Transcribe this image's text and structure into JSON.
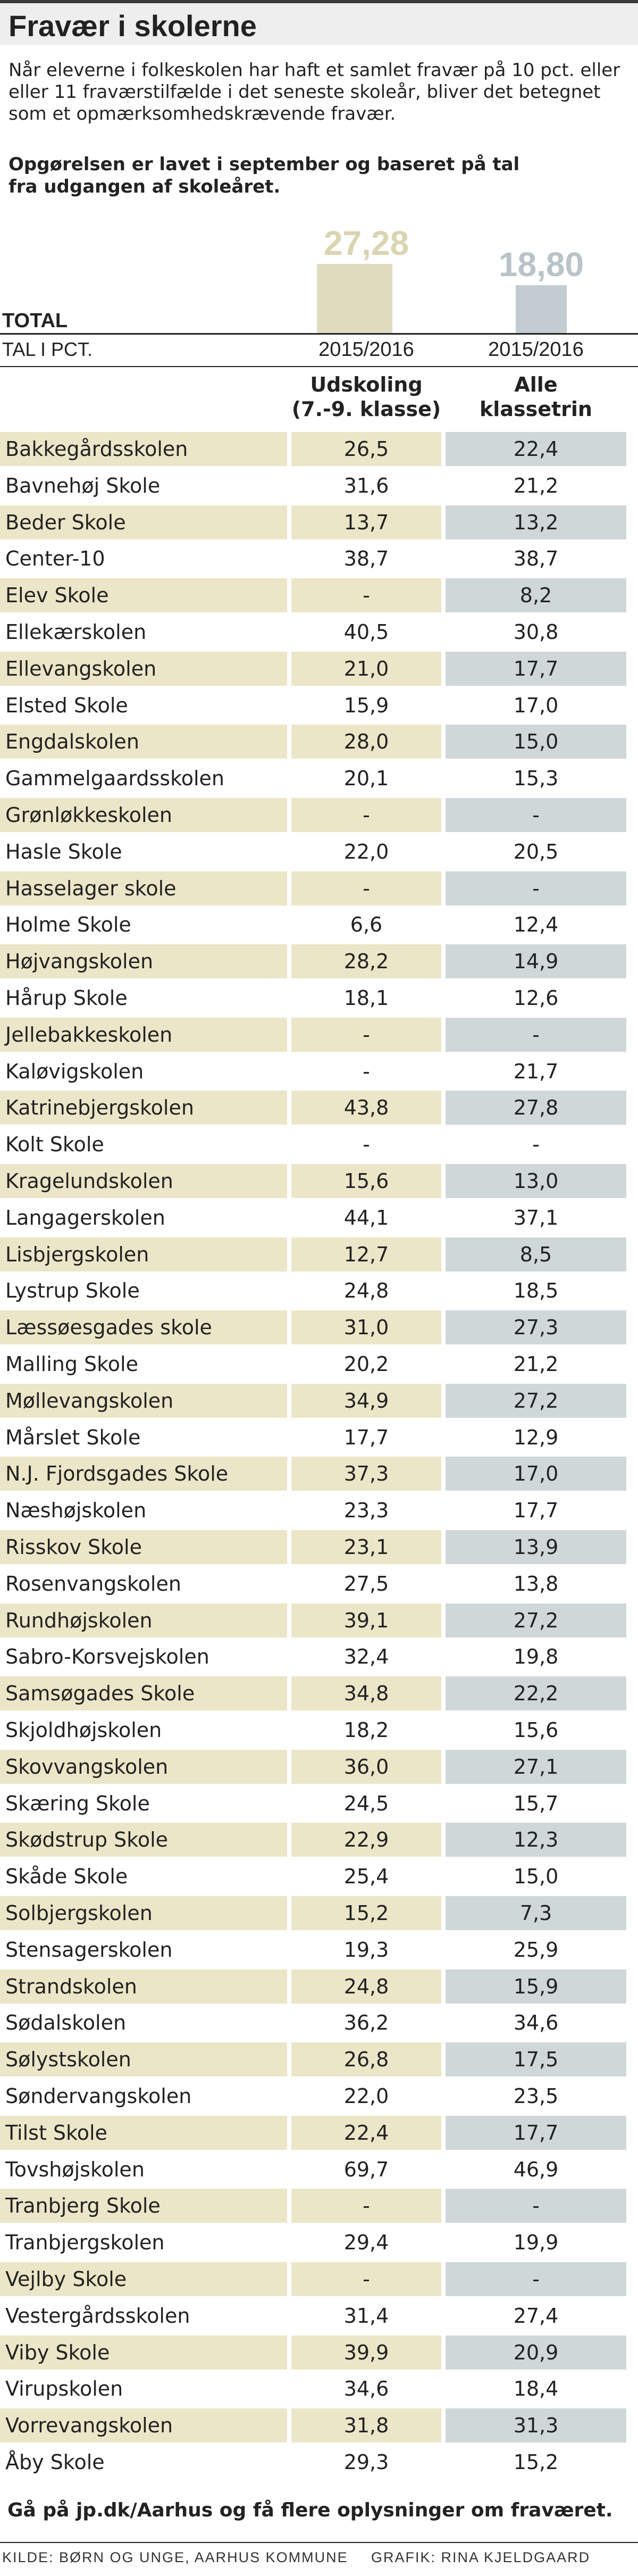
{
  "title": "Fravær i skolerne",
  "intro": "Når eleverne i folkeskolen har haft et samlet fravær på  10 pct. eller eller 11 fraværstilfælde i det seneste skoleår, bliver det betegnet som et opmærksomhedskrævende fravær.",
  "method": "Opgørelsen er lavet i september og baseret på tal fra udgangen af skoleåret.",
  "total_label": "TOTAL",
  "unit_label": "TAL I PCT.",
  "colors": {
    "col1_bar": "#e0dcc0",
    "col1_text": "#dad4b0",
    "col2_bar": "#c3ccd0",
    "col2_text": "#b9c3c8",
    "row_shade_1": "#ece6c8",
    "row_shade_2": "#cfd7d9"
  },
  "chart_data": {
    "type": "table",
    "totals": [
      {
        "year": "2015/2016",
        "header": "Udskoling (7.-9. klasse)",
        "header_lines": [
          "Udskoling",
          "(7.-9. klasse)"
        ],
        "value": "27,28"
      },
      {
        "year": "2015/2016",
        "header": "Alle klassetrin",
        "header_lines": [
          "Alle",
          "klassetrin"
        ],
        "value": "18,80"
      }
    ],
    "rows": [
      {
        "school": "Bakkegårdsskolen",
        "udskoling": "26,5",
        "alle": "22,4"
      },
      {
        "school": "Bavnehøj Skole",
        "udskoling": "31,6",
        "alle": "21,2"
      },
      {
        "school": "Beder Skole",
        "udskoling": "13,7",
        "alle": "13,2"
      },
      {
        "school": "Center-10",
        "udskoling": "38,7",
        "alle": "38,7"
      },
      {
        "school": "Elev Skole",
        "udskoling": "-",
        "alle": "8,2"
      },
      {
        "school": "Ellekærskolen",
        "udskoling": "40,5",
        "alle": "30,8"
      },
      {
        "school": "Ellevangskolen",
        "udskoling": "21,0",
        "alle": "17,7"
      },
      {
        "school": "Elsted Skole",
        "udskoling": "15,9",
        "alle": "17,0"
      },
      {
        "school": "Engdalskolen",
        "udskoling": "28,0",
        "alle": "15,0"
      },
      {
        "school": "Gammelgaardsskolen",
        "udskoling": "20,1",
        "alle": "15,3"
      },
      {
        "school": "Grønløkkeskolen",
        "udskoling": "-",
        "alle": "-"
      },
      {
        "school": "Hasle Skole",
        "udskoling": "22,0",
        "alle": "20,5"
      },
      {
        "school": "Hasselager skole",
        "udskoling": "-",
        "alle": "-"
      },
      {
        "school": "Holme Skole",
        "udskoling": "6,6",
        "alle": "12,4"
      },
      {
        "school": "Højvangskolen",
        "udskoling": "28,2",
        "alle": "14,9"
      },
      {
        "school": "Hårup Skole",
        "udskoling": "18,1",
        "alle": "12,6"
      },
      {
        "school": "Jellebakkeskolen",
        "udskoling": "-",
        "alle": "-"
      },
      {
        "school": "Kaløvigskolen",
        "udskoling": "-",
        "alle": "21,7"
      },
      {
        "school": "Katrinebjergskolen",
        "udskoling": "43,8",
        "alle": "27,8"
      },
      {
        "school": "Kolt Skole",
        "udskoling": "-",
        "alle": "-"
      },
      {
        "school": "Kragelundskolen",
        "udskoling": "15,6",
        "alle": "13,0"
      },
      {
        "school": "Langagerskolen",
        "udskoling": "44,1",
        "alle": "37,1"
      },
      {
        "school": "Lisbjergskolen",
        "udskoling": "12,7",
        "alle": "8,5"
      },
      {
        "school": "Lystrup Skole",
        "udskoling": "24,8",
        "alle": "18,5"
      },
      {
        "school": "Læssøesgades skole",
        "udskoling": "31,0",
        "alle": "27,3"
      },
      {
        "school": "Malling Skole",
        "udskoling": "20,2",
        "alle": "21,2"
      },
      {
        "school": "Møllevangskolen",
        "udskoling": "34,9",
        "alle": "27,2"
      },
      {
        "school": "Mårslet Skole",
        "udskoling": "17,7",
        "alle": "12,9"
      },
      {
        "school": "N.J. Fjordsgades Skole",
        "udskoling": "37,3",
        "alle": "17,0"
      },
      {
        "school": "Næshøjskolen",
        "udskoling": "23,3",
        "alle": "17,7"
      },
      {
        "school": "Risskov Skole",
        "udskoling": "23,1",
        "alle": "13,9"
      },
      {
        "school": "Rosenvangskolen",
        "udskoling": "27,5",
        "alle": "13,8"
      },
      {
        "school": "Rundhøjskolen",
        "udskoling": "39,1",
        "alle": "27,2"
      },
      {
        "school": "Sabro-Korsvejskolen",
        "udskoling": "32,4",
        "alle": "19,8"
      },
      {
        "school": "Samsøgades Skole",
        "udskoling": "34,8",
        "alle": "22,2"
      },
      {
        "school": "Skjoldhøjskolen",
        "udskoling": "18,2",
        "alle": "15,6"
      },
      {
        "school": "Skovvangskolen",
        "udskoling": "36,0",
        "alle": "27,1"
      },
      {
        "school": "Skæring Skole",
        "udskoling": "24,5",
        "alle": "15,7"
      },
      {
        "school": "Skødstrup Skole",
        "udskoling": "22,9",
        "alle": "12,3"
      },
      {
        "school": "Skåde Skole",
        "udskoling": "25,4",
        "alle": "15,0"
      },
      {
        "school": "Solbjergskolen",
        "udskoling": "15,2",
        "alle": "7,3"
      },
      {
        "school": "Stensagerskolen",
        "udskoling": "19,3",
        "alle": "25,9"
      },
      {
        "school": "Strandskolen",
        "udskoling": "24,8",
        "alle": "15,9"
      },
      {
        "school": "Sødalskolen",
        "udskoling": "36,2",
        "alle": "34,6"
      },
      {
        "school": "Sølystskolen",
        "udskoling": "26,8",
        "alle": "17,5"
      },
      {
        "school": "Søndervangskolen",
        "udskoling": "22,0",
        "alle": "23,5"
      },
      {
        "school": "Tilst Skole",
        "udskoling": "22,4",
        "alle": "17,7"
      },
      {
        "school": "Tovshøjskolen",
        "udskoling": "69,7",
        "alle": "46,9"
      },
      {
        "school": "Tranbjerg Skole",
        "udskoling": "-",
        "alle": "-"
      },
      {
        "school": "Tranbjergskolen",
        "udskoling": "29,4",
        "alle": "19,9"
      },
      {
        "school": "Vejlby Skole",
        "udskoling": "-",
        "alle": "-"
      },
      {
        "school": "Vestergårdsskolen",
        "udskoling": "31,4",
        "alle": "27,4"
      },
      {
        "school": "Viby Skole",
        "udskoling": "39,9",
        "alle": "20,9"
      },
      {
        "school": "Virupskolen",
        "udskoling": "34,6",
        "alle": "18,4"
      },
      {
        "school": "Vorrevangskolen",
        "udskoling": "31,8",
        "alle": "31,3"
      },
      {
        "school": "Åby Skole",
        "udskoling": "29,3",
        "alle": "15,2"
      }
    ]
  },
  "footer": {
    "link_text": "Gå på jp.dk/Aarhus og få flere oplysninger om fraværet.",
    "source": "KILDE: BØRN OG UNGE, AARHUS KOMMUNE",
    "credit": "GRAFIK: RINA KJELDGAARD"
  }
}
